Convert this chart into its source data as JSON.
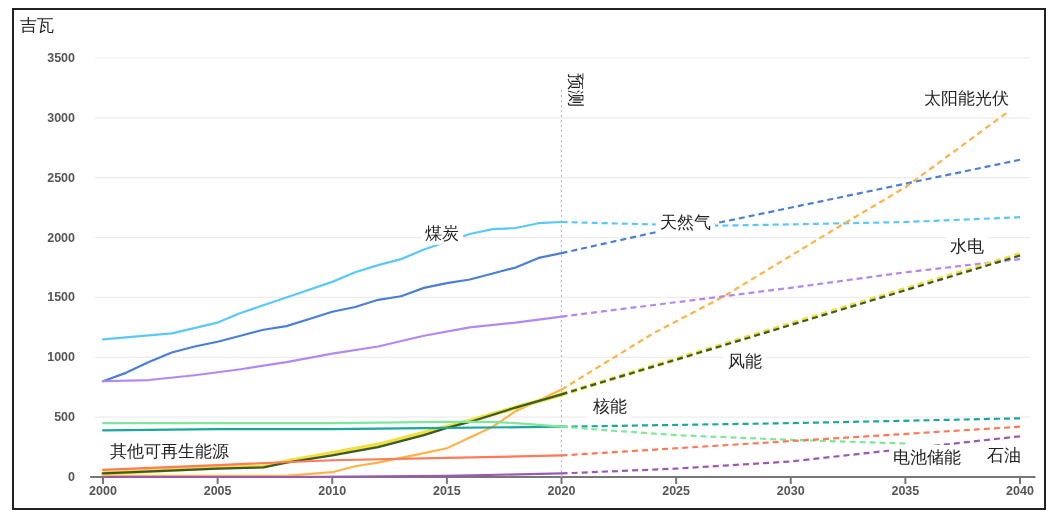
{
  "chart_data": {
    "type": "line",
    "ylabel": "吉瓦",
    "xlim": [
      1999.7,
      2040.5
    ],
    "ylim": [
      0,
      3500
    ],
    "xticks": [
      2000,
      2005,
      2010,
      2015,
      2020,
      2025,
      2030,
      2035,
      2040
    ],
    "yticks": [
      0,
      500,
      1000,
      1500,
      2000,
      2500,
      3000,
      3500
    ],
    "grid": "y",
    "marker": "none",
    "ref_lines": [
      {
        "axis": "x",
        "value": 2020,
        "label": "预测",
        "color": "#bbbbbb",
        "line_style": "dotted"
      }
    ],
    "series": [
      {
        "color": "#5ac8fa",
        "line_style": "solid",
        "x": [
          2000,
          2003,
          2005,
          2006,
          2008,
          2010,
          2011,
          2012,
          2013,
          2014,
          2015,
          2016,
          2017,
          2018,
          2019,
          2020
        ],
        "values": [
          1150,
          1200,
          1290,
          1370,
          1500,
          1630,
          1710,
          1770,
          1820,
          1900,
          null,
          2030,
          2070,
          2080,
          2120,
          2130
        ]
      },
      {
        "color": "#5ac8fa",
        "line_style": "dashed",
        "x": [
          2020,
          2022,
          2024,
          2027,
          2030,
          2035,
          2040
        ],
        "values": [
          2130,
          2120,
          2110,
          2100,
          2110,
          2130,
          2170
        ]
      },
      {
        "color": "#4a7fd4",
        "line_style": "solid",
        "x": [
          2000,
          2001,
          2002,
          2003,
          2004,
          2005,
          2006,
          2007,
          2008,
          2009,
          2010,
          2011,
          2012,
          2013,
          2014,
          2015,
          2016,
          2017,
          2018,
          2019,
          2020
        ],
        "values": [
          800,
          870,
          960,
          1040,
          1090,
          1130,
          1180,
          1230,
          1260,
          1320,
          1380,
          1420,
          1480,
          1510,
          1580,
          1620,
          1650,
          1700,
          1750,
          1830,
          1870
        ]
      },
      {
        "color": "#4a7fd4",
        "line_style": "dashed",
        "x": [
          2020,
          2024,
          2027,
          2040
        ],
        "values": [
          1870,
          2040,
          2130,
          2650
        ]
      },
      {
        "color": "#ffb347",
        "line_style": "solid",
        "x": [
          2000,
          2008,
          2010,
          2011,
          2012,
          2013,
          2014,
          2015,
          2016,
          2017,
          2018,
          2019,
          2020
        ],
        "values": [
          10,
          10,
          40,
          90,
          120,
          160,
          200,
          240,
          330,
          420,
          550,
          640,
          730
        ]
      },
      {
        "color": "#ffb347",
        "line_style": "dashed",
        "x": [
          2020,
          2024,
          2027,
          2032,
          2035,
          2039.4
        ],
        "values": [
          730,
          1200,
          1500,
          2080,
          2420,
          3040
        ]
      },
      {
        "color": "#b388f0",
        "line_style": "solid",
        "x": [
          2000,
          2002,
          2004,
          2006,
          2008,
          2010,
          2012,
          2014,
          2016,
          2018,
          2020
        ],
        "values": [
          800,
          810,
          850,
          900,
          960,
          1030,
          1090,
          1180,
          1250,
          1290,
          1340
        ]
      },
      {
        "color": "#b388f0",
        "line_style": "dashed",
        "x": [
          2020,
          2025,
          2030,
          2035,
          2040
        ],
        "values": [
          1340,
          1460,
          1580,
          1710,
          1820
        ]
      },
      {
        "color": "#f0e040",
        "line_style": "solid",
        "x": [
          2000,
          2005,
          2007,
          2008,
          2010,
          2012,
          2014,
          2015,
          2016,
          2018,
          2020
        ],
        "values": [
          30,
          80,
          90,
          130,
          200,
          270,
          370,
          420,
          470,
          580,
          690
        ]
      },
      {
        "color": "#f0e040",
        "line_style": "dashed",
        "x": [
          2020,
          2030,
          2040
        ],
        "values": [
          690,
          1280,
          1860
        ]
      },
      {
        "color": "#3d5a2a",
        "line_style": "solid",
        "x": [
          2000,
          2005,
          2007,
          2008,
          2010,
          2012,
          2014,
          2015,
          2016,
          2018,
          2020
        ],
        "values": [
          30,
          70,
          80,
          120,
          180,
          250,
          350,
          410,
          460,
          580,
          690
        ]
      },
      {
        "color": "#3d5a2a",
        "line_style": "dashed",
        "x": [
          2020,
          2030,
          2040
        ],
        "values": [
          690,
          1270,
          1850
        ]
      },
      {
        "color": "#1aa89a",
        "line_style": "solid",
        "x": [
          2000,
          2005,
          2010,
          2015,
          2020
        ],
        "values": [
          390,
          400,
          400,
          410,
          420
        ]
      },
      {
        "color": "#1aa89a",
        "line_style": "dashed",
        "x": [
          2020,
          2030,
          2040
        ],
        "values": [
          420,
          450,
          490
        ]
      },
      {
        "color": "#7ee89a",
        "line_style": "solid",
        "x": [
          2000,
          2010,
          2015,
          2017,
          2018,
          2020
        ],
        "values": [
          450,
          450,
          460,
          460,
          450,
          420
        ]
      },
      {
        "color": "#7ee89a",
        "line_style": "dashed",
        "x": [
          2020,
          2022,
          2025,
          2030,
          2035
        ],
        "values": [
          420,
          390,
          350,
          310,
          280
        ]
      },
      {
        "color": "#ff7a59",
        "line_style": "solid",
        "x": [
          2000,
          2005,
          2010,
          2015,
          2020
        ],
        "values": [
          60,
          100,
          140,
          160,
          180
        ]
      },
      {
        "color": "#ff7a59",
        "line_style": "dashed",
        "x": [
          2020,
          2030,
          2040
        ],
        "values": [
          180,
          300,
          420
        ]
      },
      {
        "color": "#9b59b6",
        "line_style": "solid",
        "x": [
          2000,
          2008,
          2015,
          2020
        ],
        "values": [
          0,
          0,
          10,
          30
        ]
      },
      {
        "color": "#9b59b6",
        "line_style": "dashed",
        "x": [
          2020,
          2025,
          2030,
          2035,
          2040
        ],
        "values": [
          30,
          70,
          130,
          null,
          340
        ]
      }
    ],
    "annotations": [
      {
        "text": "煤炭",
        "x": 2014.8,
        "y": 2040
      },
      {
        "text": "天然气",
        "x": 2025.4,
        "y": 2130
      },
      "太阳能光伏",
      {
        "text": "水电",
        "x": 2037.7,
        "y": 1930
      },
      {
        "text": "风能",
        "x": 2028.0,
        "y": 970
      },
      {
        "text": "核能",
        "x": 2022.1,
        "y": 590
      },
      "电池储能",
      {
        "text": "石油",
        "x": 2039.3,
        "y": 180
      },
      "其他可再生能源"
    ]
  }
}
